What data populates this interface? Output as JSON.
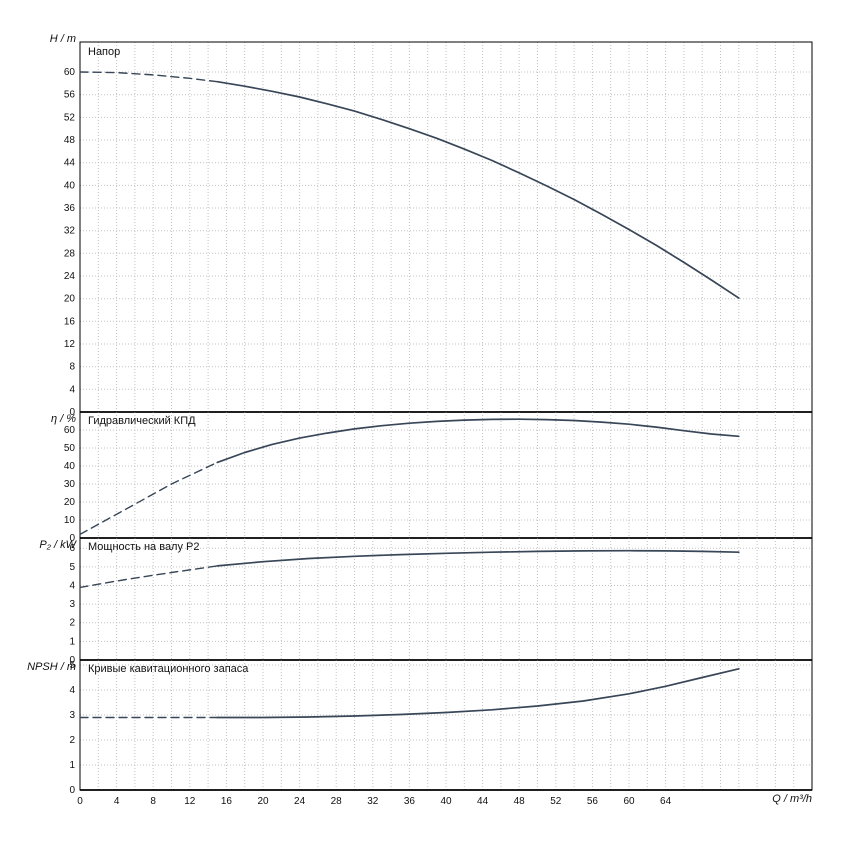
{
  "colors": {
    "curve": "#384657",
    "grid": "#c2c2c2",
    "axis": "#000000",
    "background": "#ffffff",
    "text": "#111111"
  },
  "x_axis": {
    "label": "Q / m³/h",
    "min": 0,
    "max": 80,
    "ticks": [
      0,
      4,
      8,
      12,
      16,
      20,
      24,
      28,
      32,
      36,
      40,
      44,
      48,
      52,
      56,
      60,
      64
    ],
    "minor_step": 2,
    "grid": true
  },
  "chart_data": [
    {
      "type": "line",
      "title": "Напор",
      "ylabel": "H / m",
      "ylim": [
        0,
        65.3
      ],
      "yticks": [
        0,
        4,
        8,
        12,
        16,
        20,
        24,
        28,
        32,
        36,
        40,
        44,
        48,
        52,
        56,
        60
      ],
      "series": [
        {
          "name": "head-extrapolated",
          "style": "dashed",
          "points": [
            [
              0,
              60
            ],
            [
              4,
              59.9
            ],
            [
              8,
              59.5
            ],
            [
              12,
              58.9
            ],
            [
              15,
              58.3
            ]
          ]
        },
        {
          "name": "head",
          "style": "solid",
          "points": [
            [
              15,
              58.3
            ],
            [
              18,
              57.5
            ],
            [
              21,
              56.6
            ],
            [
              24,
              55.6
            ],
            [
              27,
              54.4
            ],
            [
              30,
              53.1
            ],
            [
              33,
              51.6
            ],
            [
              36,
              50.0
            ],
            [
              39,
              48.3
            ],
            [
              42,
              46.4
            ],
            [
              45,
              44.4
            ],
            [
              48,
              42.2
            ],
            [
              51,
              39.9
            ],
            [
              54,
              37.5
            ],
            [
              57,
              34.9
            ],
            [
              60,
              32.2
            ],
            [
              63,
              29.4
            ],
            [
              66,
              26.4
            ],
            [
              69,
              23.3
            ],
            [
              72,
              20.1
            ]
          ]
        }
      ]
    },
    {
      "type": "line",
      "title": "Гидравлический КПД",
      "ylabel": "η / %",
      "ylim": [
        0,
        70
      ],
      "yticks": [
        0,
        10,
        20,
        30,
        40,
        50,
        60
      ],
      "series": [
        {
          "name": "efficiency-extrapolated",
          "style": "dashed",
          "points": [
            [
              0,
              2
            ],
            [
              5,
              16
            ],
            [
              10,
              30
            ],
            [
              15,
              42
            ]
          ]
        },
        {
          "name": "efficiency",
          "style": "solid",
          "points": [
            [
              15,
              42
            ],
            [
              18,
              47.5
            ],
            [
              21,
              52
            ],
            [
              24,
              55.5
            ],
            [
              27,
              58.3
            ],
            [
              30,
              60.6
            ],
            [
              33,
              62.4
            ],
            [
              36,
              63.8
            ],
            [
              39,
              64.8
            ],
            [
              42,
              65.5
            ],
            [
              45,
              65.9
            ],
            [
              48,
              66
            ],
            [
              51,
              65.8
            ],
            [
              54,
              65.3
            ],
            [
              57,
              64.4
            ],
            [
              60,
              63.2
            ],
            [
              63,
              61.6
            ],
            [
              66,
              59.6
            ],
            [
              69,
              57.8
            ],
            [
              72,
              56.5
            ]
          ]
        }
      ]
    },
    {
      "type": "line",
      "title": "Мощность на валу P2",
      "ylabel": "P₂ / kW",
      "ylim": [
        0,
        6.55
      ],
      "yticks": [
        0,
        1,
        2,
        3,
        4,
        5,
        6
      ],
      "series": [
        {
          "name": "shaft-power-extrapolated",
          "style": "dashed",
          "points": [
            [
              0,
              3.9
            ],
            [
              5,
              4.32
            ],
            [
              10,
              4.7
            ],
            [
              15,
              5.05
            ]
          ]
        },
        {
          "name": "shaft-power",
          "style": "solid",
          "points": [
            [
              15,
              5.05
            ],
            [
              20,
              5.28
            ],
            [
              25,
              5.45
            ],
            [
              30,
              5.57
            ],
            [
              35,
              5.66
            ],
            [
              40,
              5.73
            ],
            [
              45,
              5.79
            ],
            [
              50,
              5.83
            ],
            [
              55,
              5.86
            ],
            [
              60,
              5.87
            ],
            [
              64,
              5.86
            ],
            [
              68,
              5.83
            ],
            [
              72,
              5.79
            ]
          ]
        }
      ]
    },
    {
      "type": "line",
      "title": "Кривые кавитационного запаса",
      "ylabel": "NPSH / m",
      "ylim": [
        0,
        5.2
      ],
      "yticks": [
        0,
        1,
        2,
        3,
        4,
        5
      ],
      "series": [
        {
          "name": "npsh-extrapolated",
          "style": "dashed",
          "points": [
            [
              0,
              2.9
            ],
            [
              7,
              2.9
            ],
            [
              15,
              2.9
            ]
          ]
        },
        {
          "name": "npsh",
          "style": "solid",
          "points": [
            [
              15,
              2.9
            ],
            [
              20,
              2.9
            ],
            [
              25,
              2.92
            ],
            [
              30,
              2.96
            ],
            [
              35,
              3.02
            ],
            [
              40,
              3.1
            ],
            [
              45,
              3.21
            ],
            [
              50,
              3.36
            ],
            [
              55,
              3.56
            ],
            [
              60,
              3.85
            ],
            [
              64,
              4.15
            ],
            [
              68,
              4.5
            ],
            [
              72,
              4.85
            ]
          ]
        }
      ]
    }
  ]
}
